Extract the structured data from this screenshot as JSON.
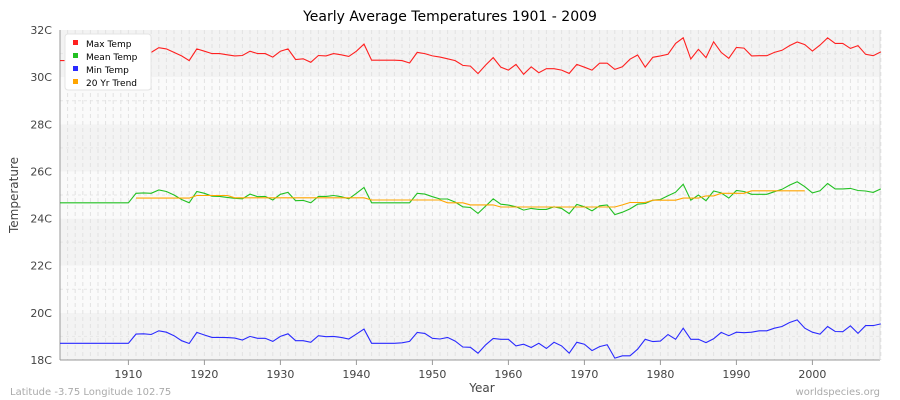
{
  "chart_data": {
    "type": "line",
    "title": "Yearly Average Temperatures 1901 - 2009",
    "xlabel": "Year",
    "ylabel": "Temperature",
    "xlim": [
      1901,
      2009
    ],
    "ylim": [
      18,
      32
    ],
    "yticks": [
      18,
      20,
      22,
      24,
      26,
      28,
      30,
      32
    ],
    "ytick_labels": [
      "18C",
      "20C",
      "22C",
      "24C",
      "26C",
      "28C",
      "30C",
      "32C"
    ],
    "xticks": [
      1910,
      1920,
      1930,
      1940,
      1950,
      1960,
      1970,
      1980,
      1990,
      2000
    ],
    "xtick_labels": [
      "1910",
      "1920",
      "1930",
      "1940",
      "1950",
      "1960",
      "1970",
      "1980",
      "1990",
      "2000"
    ],
    "legend_position": "top-left",
    "grid": true,
    "x_start": 1901,
    "series": [
      {
        "name": "Max Temp",
        "color": "#ff2020",
        "start": 1901,
        "values": [
          30.7,
          30.7,
          30.7,
          30.7,
          30.7,
          30.7,
          30.7,
          30.7,
          30.7,
          30.7,
          31.05,
          31.1,
          31.05,
          31.25,
          31.2,
          31.05,
          30.9,
          30.7,
          31.2,
          31.1,
          31.0,
          31.0,
          30.95,
          30.9,
          30.92,
          31.1,
          31.0,
          31.0,
          30.85,
          31.1,
          31.2,
          30.75,
          30.78,
          30.63,
          30.92,
          30.9,
          31.0,
          30.95,
          30.88,
          31.1,
          31.4,
          30.72,
          30.72,
          30.72,
          30.72,
          30.7,
          30.6,
          31.05,
          31.0,
          30.9,
          30.85,
          30.78,
          30.7,
          30.5,
          30.47,
          30.15,
          30.51,
          30.83,
          30.42,
          30.3,
          30.54,
          30.12,
          30.44,
          30.19,
          30.36,
          30.36,
          30.3,
          30.16,
          30.54,
          30.42,
          30.3,
          30.59,
          30.59,
          30.33,
          30.44,
          30.76,
          30.94,
          30.42,
          30.84,
          30.9,
          30.97,
          31.43,
          31.67,
          30.77,
          31.18,
          30.83,
          31.5,
          31.05,
          30.8,
          31.26,
          31.23,
          30.9,
          30.91,
          30.91,
          31.05,
          31.14,
          31.34,
          31.49,
          31.38,
          31.11,
          31.36,
          31.67,
          31.43,
          31.43,
          31.22,
          31.34,
          30.97,
          30.91,
          31.07
        ]
      },
      {
        "name": "Mean Temp",
        "color": "#22c022",
        "start": 1901,
        "values": [
          24.67,
          24.67,
          24.67,
          24.67,
          24.67,
          24.67,
          24.67,
          24.67,
          24.67,
          24.67,
          25.07,
          25.09,
          25.07,
          25.21,
          25.15,
          25.0,
          24.81,
          24.67,
          25.15,
          25.07,
          24.95,
          24.94,
          24.9,
          24.86,
          24.84,
          25.04,
          24.93,
          24.94,
          24.79,
          25.03,
          25.11,
          24.76,
          24.77,
          24.67,
          24.94,
          24.94,
          24.98,
          24.93,
          24.84,
          25.07,
          25.32,
          24.67,
          24.67,
          24.67,
          24.67,
          24.67,
          24.67,
          25.07,
          25.04,
          24.93,
          24.83,
          24.83,
          24.7,
          24.5,
          24.47,
          24.22,
          24.53,
          24.84,
          24.61,
          24.57,
          24.5,
          24.36,
          24.43,
          24.39,
          24.39,
          24.5,
          24.43,
          24.21,
          24.6,
          24.5,
          24.33,
          24.54,
          24.58,
          24.17,
          24.27,
          24.41,
          24.61,
          24.64,
          24.78,
          24.81,
          24.97,
          25.12,
          25.46,
          24.78,
          25.0,
          24.76,
          25.17,
          25.09,
          24.87,
          25.19,
          25.15,
          25.03,
          25.03,
          25.03,
          25.14,
          25.24,
          25.42,
          25.56,
          25.35,
          25.09,
          25.18,
          25.49,
          25.26,
          25.26,
          25.28,
          25.19,
          25.17,
          25.11,
          25.26
        ]
      },
      {
        "name": "Min Temp",
        "color": "#2a2aff",
        "start": 1901,
        "values": [
          18.71,
          18.71,
          18.71,
          18.71,
          18.71,
          18.71,
          18.71,
          18.71,
          18.71,
          18.71,
          19.1,
          19.11,
          19.08,
          19.24,
          19.18,
          19.03,
          18.82,
          18.7,
          19.17,
          19.06,
          18.96,
          18.96,
          18.95,
          18.93,
          18.85,
          19.0,
          18.92,
          18.92,
          18.79,
          19.0,
          19.11,
          18.82,
          18.82,
          18.75,
          19.03,
          18.99,
          19.0,
          18.96,
          18.89,
          19.1,
          19.31,
          18.71,
          18.71,
          18.71,
          18.71,
          18.73,
          18.79,
          19.17,
          19.13,
          18.92,
          18.89,
          18.96,
          18.8,
          18.55,
          18.54,
          18.29,
          18.64,
          18.91,
          18.88,
          18.88,
          18.6,
          18.67,
          18.53,
          18.71,
          18.49,
          18.75,
          18.6,
          18.29,
          18.75,
          18.67,
          18.4,
          18.57,
          18.65,
          18.08,
          18.18,
          18.18,
          18.46,
          18.88,
          18.78,
          18.8,
          19.08,
          18.88,
          19.35,
          18.88,
          18.88,
          18.74,
          18.9,
          19.17,
          19.03,
          19.18,
          19.16,
          19.18,
          19.24,
          19.24,
          19.35,
          19.42,
          19.59,
          19.7,
          19.35,
          19.18,
          19.1,
          19.42,
          19.21,
          19.2,
          19.45,
          19.13,
          19.46,
          19.46,
          19.53
        ]
      },
      {
        "name": "20 Yr Trend",
        "color": "#ffa500",
        "start": 1911,
        "values": [
          24.87,
          24.87,
          24.87,
          24.87,
          24.87,
          24.87,
          24.87,
          24.87,
          24.98,
          24.98,
          24.98,
          24.98,
          24.98,
          24.88,
          24.88,
          24.88,
          24.88,
          24.88,
          24.88,
          24.88,
          24.88,
          24.88,
          24.88,
          24.88,
          24.88,
          24.88,
          24.88,
          24.88,
          24.88,
          24.88,
          24.88,
          24.79,
          24.79,
          24.79,
          24.79,
          24.79,
          24.79,
          24.79,
          24.79,
          24.79,
          24.79,
          24.67,
          24.67,
          24.67,
          24.58,
          24.58,
          24.58,
          24.58,
          24.49,
          24.49,
          24.49,
          24.49,
          24.49,
          24.49,
          24.49,
          24.49,
          24.49,
          24.49,
          24.49,
          24.49,
          24.49,
          24.49,
          24.49,
          24.49,
          24.58,
          24.68,
          24.68,
          24.68,
          24.78,
          24.78,
          24.78,
          24.78,
          24.87,
          24.87,
          24.87,
          24.96,
          24.96,
          25.07,
          25.07,
          25.07,
          25.07,
          25.18,
          25.18,
          25.18,
          25.18,
          25.18,
          25.18,
          25.18,
          25.18
        ]
      }
    ]
  },
  "footer": {
    "location": "Latitude -3.75 Longitude 102.75",
    "source": "worldspecies.org"
  }
}
